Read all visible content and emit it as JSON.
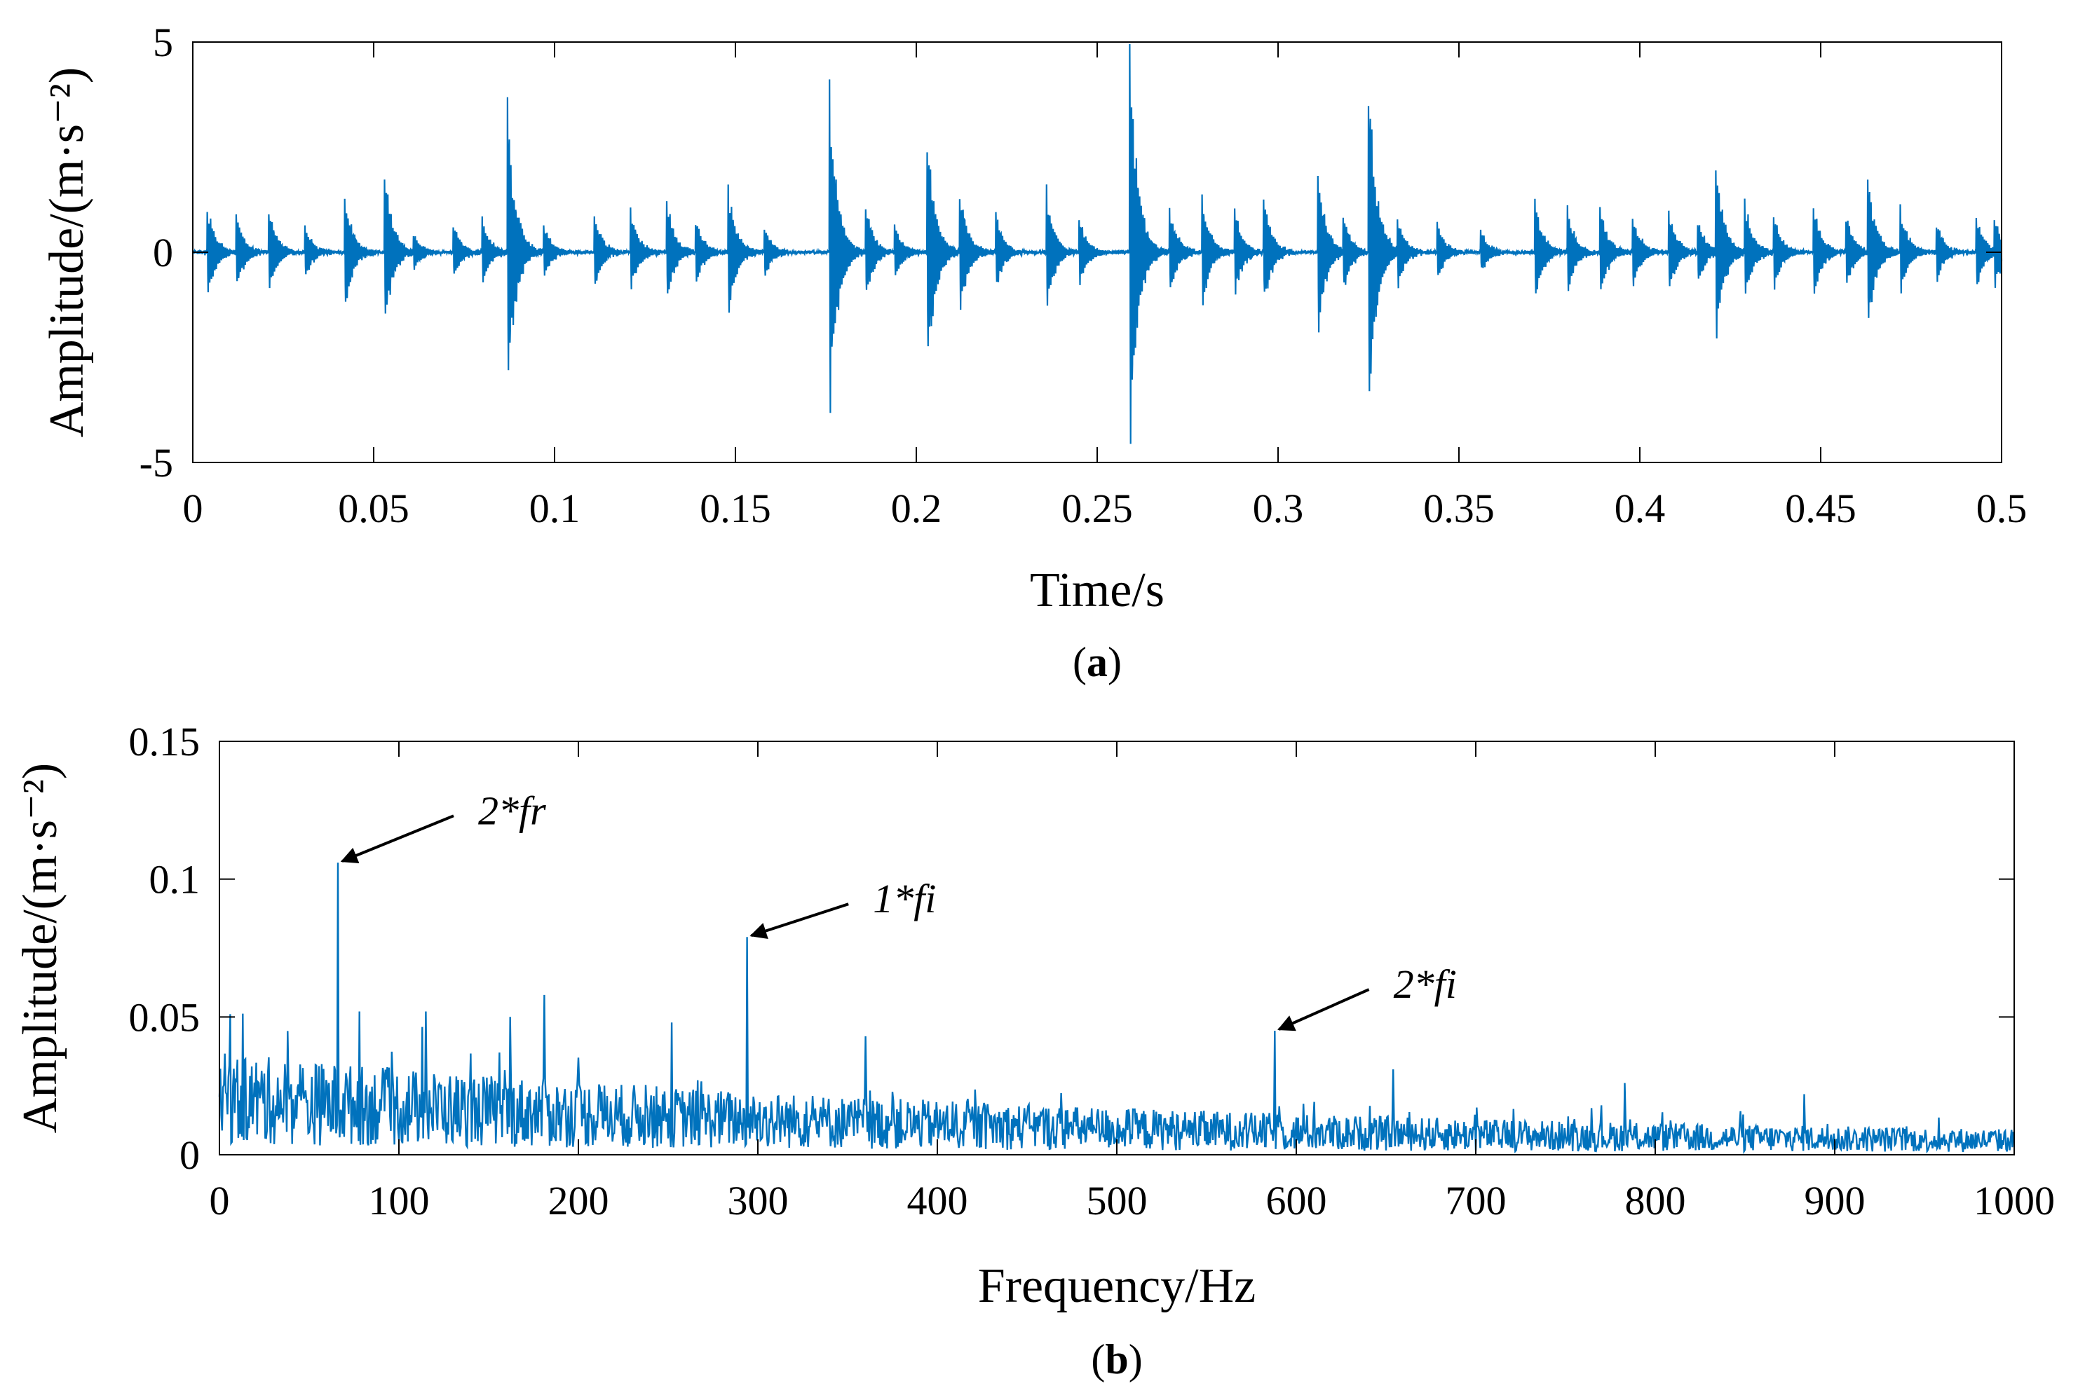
{
  "chart_data": [
    {
      "type": "line",
      "panel_caption": "(a)",
      "caption_letter": "a",
      "xlabel": "Time/s",
      "ylabel": "Amplitude/(m·s⁻²)",
      "xlim": [
        0,
        0.5
      ],
      "ylim": [
        -5,
        5
      ],
      "xticks": [
        0,
        0.05,
        0.1,
        0.15,
        0.2,
        0.25,
        0.3,
        0.35,
        0.4,
        0.45,
        0.5
      ],
      "xtick_labels": [
        "0",
        "0.05",
        "0.1",
        "0.15",
        "0.2",
        "0.25",
        "0.3",
        "0.35",
        "0.4",
        "0.45",
        "0.5"
      ],
      "yticks": [
        -5,
        0,
        5
      ],
      "ytick_labels": [
        "-5",
        "0",
        "5"
      ],
      "color": "#0072BD",
      "series_note": "vibration time signal, bursts of decaying oscillation",
      "impulses": [
        {
          "t": 0.004,
          "amp": 1.1
        },
        {
          "t": 0.012,
          "amp": 0.9
        },
        {
          "t": 0.021,
          "amp": 1.0
        },
        {
          "t": 0.031,
          "amp": 0.6
        },
        {
          "t": 0.042,
          "amp": 1.4
        },
        {
          "t": 0.053,
          "amp": 1.9
        },
        {
          "t": 0.061,
          "amp": 0.5
        },
        {
          "t": 0.072,
          "amp": 0.7
        },
        {
          "t": 0.08,
          "amp": 0.8
        },
        {
          "t": 0.087,
          "amp": 3.3
        },
        {
          "t": 0.097,
          "amp": 0.6
        },
        {
          "t": 0.111,
          "amp": 0.9
        },
        {
          "t": 0.121,
          "amp": 1.0
        },
        {
          "t": 0.131,
          "amp": 1.2
        },
        {
          "t": 0.139,
          "amp": 0.8
        },
        {
          "t": 0.148,
          "amp": 1.5
        },
        {
          "t": 0.158,
          "amp": 0.6
        },
        {
          "t": 0.176,
          "amp": 3.8
        },
        {
          "t": 0.186,
          "amp": 1.1
        },
        {
          "t": 0.194,
          "amp": 0.7
        },
        {
          "t": 0.203,
          "amp": 2.8
        },
        {
          "t": 0.212,
          "amp": 1.5
        },
        {
          "t": 0.222,
          "amp": 0.9
        },
        {
          "t": 0.236,
          "amp": 1.4
        },
        {
          "t": 0.245,
          "amp": 0.8
        },
        {
          "t": 0.259,
          "amp": 4.8
        },
        {
          "t": 0.27,
          "amp": 1.1
        },
        {
          "t": 0.279,
          "amp": 1.3
        },
        {
          "t": 0.288,
          "amp": 1.0
        },
        {
          "t": 0.296,
          "amp": 1.3
        },
        {
          "t": 0.311,
          "amp": 1.9
        },
        {
          "t": 0.318,
          "amp": 1.0
        },
        {
          "t": 0.325,
          "amp": 4.0
        },
        {
          "t": 0.333,
          "amp": 0.9
        },
        {
          "t": 0.344,
          "amp": 0.7
        },
        {
          "t": 0.356,
          "amp": 0.5
        },
        {
          "t": 0.371,
          "amp": 1.2
        },
        {
          "t": 0.38,
          "amp": 1.0
        },
        {
          "t": 0.389,
          "amp": 1.1
        },
        {
          "t": 0.398,
          "amp": 0.9
        },
        {
          "t": 0.408,
          "amp": 1.0
        },
        {
          "t": 0.416,
          "amp": 0.8
        },
        {
          "t": 0.421,
          "amp": 2.0
        },
        {
          "t": 0.429,
          "amp": 1.2
        },
        {
          "t": 0.437,
          "amp": 0.9
        },
        {
          "t": 0.448,
          "amp": 1.1
        },
        {
          "t": 0.457,
          "amp": 0.9
        },
        {
          "t": 0.463,
          "amp": 1.8
        },
        {
          "t": 0.472,
          "amp": 1.0
        },
        {
          "t": 0.482,
          "amp": 0.7
        },
        {
          "t": 0.493,
          "amp": 0.9
        },
        {
          "t": 0.498,
          "amp": 0.8
        }
      ]
    },
    {
      "type": "line",
      "panel_caption": "(b)",
      "caption_letter": "b",
      "xlabel": "Frequency/Hz",
      "ylabel": "Amplitude/(m·s⁻²)",
      "xlim": [
        0,
        1000
      ],
      "ylim": [
        0,
        0.15
      ],
      "xticks": [
        0,
        100,
        200,
        300,
        400,
        500,
        600,
        700,
        800,
        900,
        1000
      ],
      "xtick_labels": [
        "0",
        "100",
        "200",
        "300",
        "400",
        "500",
        "600",
        "700",
        "800",
        "900",
        "1000"
      ],
      "yticks": [
        0,
        0.05,
        0.1,
        0.15
      ],
      "ytick_labels": [
        "0",
        "0.05",
        "0.1",
        "0.15"
      ],
      "color": "#0072BD",
      "series_note": "amplitude spectrum with noise floor decaying from ~0.02 to ~0.005",
      "peaks": [
        {
          "f": 66,
          "amp": 0.106
        },
        {
          "f": 294,
          "amp": 0.079
        },
        {
          "f": 588,
          "amp": 0.045
        },
        {
          "f": 181,
          "amp": 0.058
        },
        {
          "f": 115,
          "amp": 0.052
        },
        {
          "f": 78,
          "amp": 0.052
        },
        {
          "f": 162,
          "amp": 0.05
        },
        {
          "f": 6,
          "amp": 0.051
        },
        {
          "f": 252,
          "amp": 0.048
        },
        {
          "f": 360,
          "amp": 0.043
        },
        {
          "f": 654,
          "amp": 0.031
        },
        {
          "f": 783,
          "amp": 0.026
        },
        {
          "f": 883,
          "amp": 0.022
        }
      ],
      "annotations": [
        {
          "label": "2*fr",
          "target_x": 66,
          "target_y": 0.106,
          "text_x": 150,
          "text_y": 0.125
        },
        {
          "label": "1*fi",
          "target_x": 294,
          "target_y": 0.079,
          "text_x": 370,
          "text_y": 0.093
        },
        {
          "label": "2*fi",
          "target_x": 588,
          "target_y": 0.045,
          "text_x": 660,
          "text_y": 0.062
        }
      ]
    }
  ]
}
